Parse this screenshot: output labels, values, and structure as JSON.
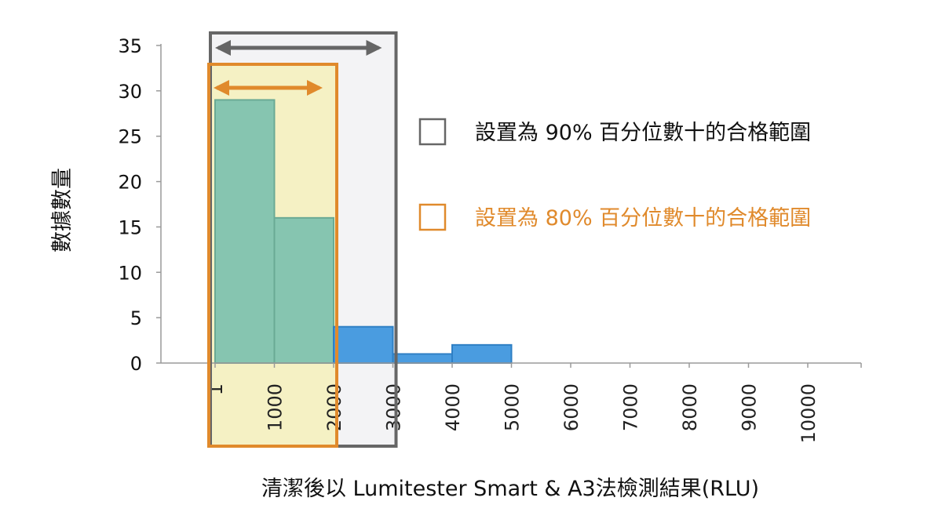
{
  "chart_data": {
    "type": "bar",
    "bins": [
      {
        "x0": 1,
        "x1": 1000,
        "value": 29,
        "color": "#86c5b0"
      },
      {
        "x0": 1000,
        "x1": 2000,
        "value": 16,
        "color": "#86c5b0"
      },
      {
        "x0": 2000,
        "x1": 3000,
        "value": 4,
        "color": "#4a9ce0"
      },
      {
        "x0": 3000,
        "x1": 4000,
        "value": 1,
        "color": "#4a9ce0"
      },
      {
        "x0": 4000,
        "x1": 5000,
        "value": 2,
        "color": "#4a9ce0"
      }
    ],
    "xticks": [
      "1",
      "1000",
      "2000",
      "3000",
      "4000",
      "5000",
      "6000",
      "7000",
      "8000",
      "9000",
      "10000"
    ],
    "yticks": [
      "0",
      "5",
      "10",
      "15",
      "20",
      "25",
      "30",
      "35"
    ],
    "ylim": [
      0,
      35
    ],
    "xlabel": "清潔後以 Lumitester Smart & A3法檢測結果(RLU)",
    "ylabel": "數據數量",
    "ranges": [
      {
        "label": "設置為 90% 百分位數十的合格範圍",
        "from": 1,
        "to": 3000,
        "color": "#666666",
        "fill": "#f3f3f5"
      },
      {
        "label": "設置為 80% 百分位數十的合格範圍",
        "from": 1,
        "to": 2000,
        "color": "#e08a2c",
        "fill": "#f5f1c4"
      }
    ],
    "grid": false
  }
}
